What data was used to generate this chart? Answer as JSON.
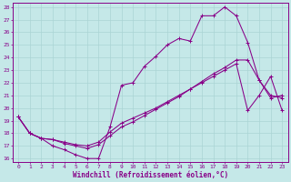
{
  "xlabel": "Windchill (Refroidissement éolien,°C)",
  "xlim": [
    -0.5,
    23.5
  ],
  "ylim": [
    15.7,
    28.3
  ],
  "xticks": [
    0,
    1,
    2,
    3,
    4,
    5,
    6,
    7,
    8,
    9,
    10,
    11,
    12,
    13,
    14,
    15,
    16,
    17,
    18,
    19,
    20,
    21,
    22,
    23
  ],
  "yticks": [
    16,
    17,
    18,
    19,
    20,
    21,
    22,
    23,
    24,
    25,
    26,
    27,
    28
  ],
  "bg_color": "#c5e8e8",
  "line_color": "#880088",
  "grid_color": "#aad4d4",
  "line1_x": [
    0,
    1,
    2,
    3,
    4,
    5,
    6,
    7,
    8,
    9,
    10,
    11,
    12,
    13,
    14,
    15,
    16,
    17,
    18,
    19,
    20,
    21,
    22,
    23
  ],
  "line1_y": [
    19.3,
    18.0,
    17.6,
    17.0,
    16.7,
    16.3,
    16.0,
    16.0,
    18.5,
    21.8,
    22.0,
    23.3,
    24.1,
    25.0,
    25.5,
    25.3,
    27.3,
    27.3,
    28.0,
    27.3,
    25.2,
    22.2,
    20.8,
    21.0
  ],
  "line2_x": [
    0,
    1,
    2,
    3,
    4,
    5,
    6,
    7,
    8,
    9,
    10,
    11,
    12,
    13,
    14,
    15,
    16,
    17,
    18,
    19,
    20,
    21,
    22,
    23
  ],
  "line2_y": [
    19.3,
    18.0,
    17.6,
    17.5,
    17.2,
    17.0,
    16.8,
    17.1,
    17.8,
    18.5,
    18.9,
    19.4,
    19.9,
    20.4,
    20.9,
    21.5,
    22.1,
    22.7,
    23.2,
    23.8,
    23.8,
    22.2,
    21.0,
    20.8
  ],
  "line3_x": [
    0,
    1,
    2,
    3,
    4,
    5,
    6,
    7,
    8,
    9,
    10,
    11,
    12,
    13,
    14,
    15,
    16,
    17,
    18,
    19,
    20,
    21,
    22,
    23
  ],
  "line3_y": [
    19.3,
    18.0,
    17.6,
    17.5,
    17.3,
    17.1,
    17.0,
    17.3,
    18.1,
    18.8,
    19.2,
    19.6,
    20.0,
    20.5,
    21.0,
    21.5,
    22.0,
    22.5,
    23.0,
    23.5,
    19.8,
    21.0,
    22.5,
    19.8
  ]
}
